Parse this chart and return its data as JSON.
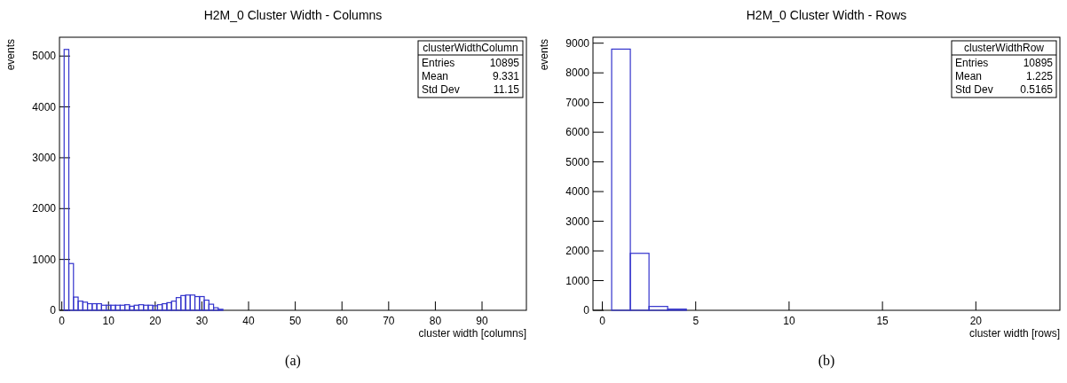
{
  "chart_data": [
    {
      "type": "histogram",
      "title": "H2M_0 Cluster Width - Columns",
      "xlabel": "cluster width [columns]",
      "ylabel": "events",
      "color": "#3333cc",
      "bins": [
        0.5,
        1.5,
        2.5,
        3.5,
        4.5,
        5.5,
        6.5,
        7.5,
        8.5,
        9.5,
        10.5,
        11.5,
        12.5,
        13.5,
        14.5,
        15.5,
        16.5,
        17.5,
        18.5,
        19.5,
        20.5,
        21.5,
        22.5,
        23.5,
        24.5,
        25.5,
        26.5,
        27.5,
        28.5,
        29.5,
        30.5,
        31.5,
        32.5,
        33.5,
        34.5
      ],
      "values": [
        5130,
        920,
        260,
        180,
        160,
        130,
        130,
        130,
        100,
        100,
        100,
        100,
        100,
        110,
        80,
        100,
        110,
        100,
        100,
        90,
        110,
        130,
        150,
        180,
        250,
        290,
        300,
        300,
        270,
        270,
        200,
        120,
        50,
        20
      ],
      "xlim": [
        -0.5,
        99.5
      ],
      "xticks": [
        0,
        10,
        20,
        30,
        40,
        50,
        60,
        70,
        80,
        90
      ],
      "ylim": [
        0,
        5370
      ],
      "yticks": [
        0,
        1000,
        2000,
        3000,
        4000,
        5000
      ],
      "grid": false,
      "annotations": [
        "clusterWidthColumn",
        "Entries",
        "10895",
        "Mean",
        "9.331",
        "Std Dev",
        "11.15",
        "(a)"
      ]
    },
    {
      "type": "histogram",
      "title": "H2M_0 Cluster Width - Rows",
      "xlabel": "cluster width [rows]",
      "ylabel": "events",
      "color": "#3333cc",
      "bins": [
        0.5,
        1.5,
        2.5,
        3.5,
        4.5
      ],
      "values": [
        8800,
        1920,
        130,
        40
      ],
      "xlim": [
        -0.5,
        24.5
      ],
      "xticks": [
        0,
        5,
        10,
        15,
        20
      ],
      "ylim": [
        0,
        9200
      ],
      "yticks": [
        0,
        1000,
        2000,
        3000,
        4000,
        5000,
        6000,
        7000,
        8000,
        9000
      ],
      "grid": false,
      "annotations": [
        "clusterWidthRow",
        "Entries",
        "10895",
        "Mean",
        "1.225",
        "Std Dev",
        "0.5165",
        "(b)"
      ]
    }
  ]
}
